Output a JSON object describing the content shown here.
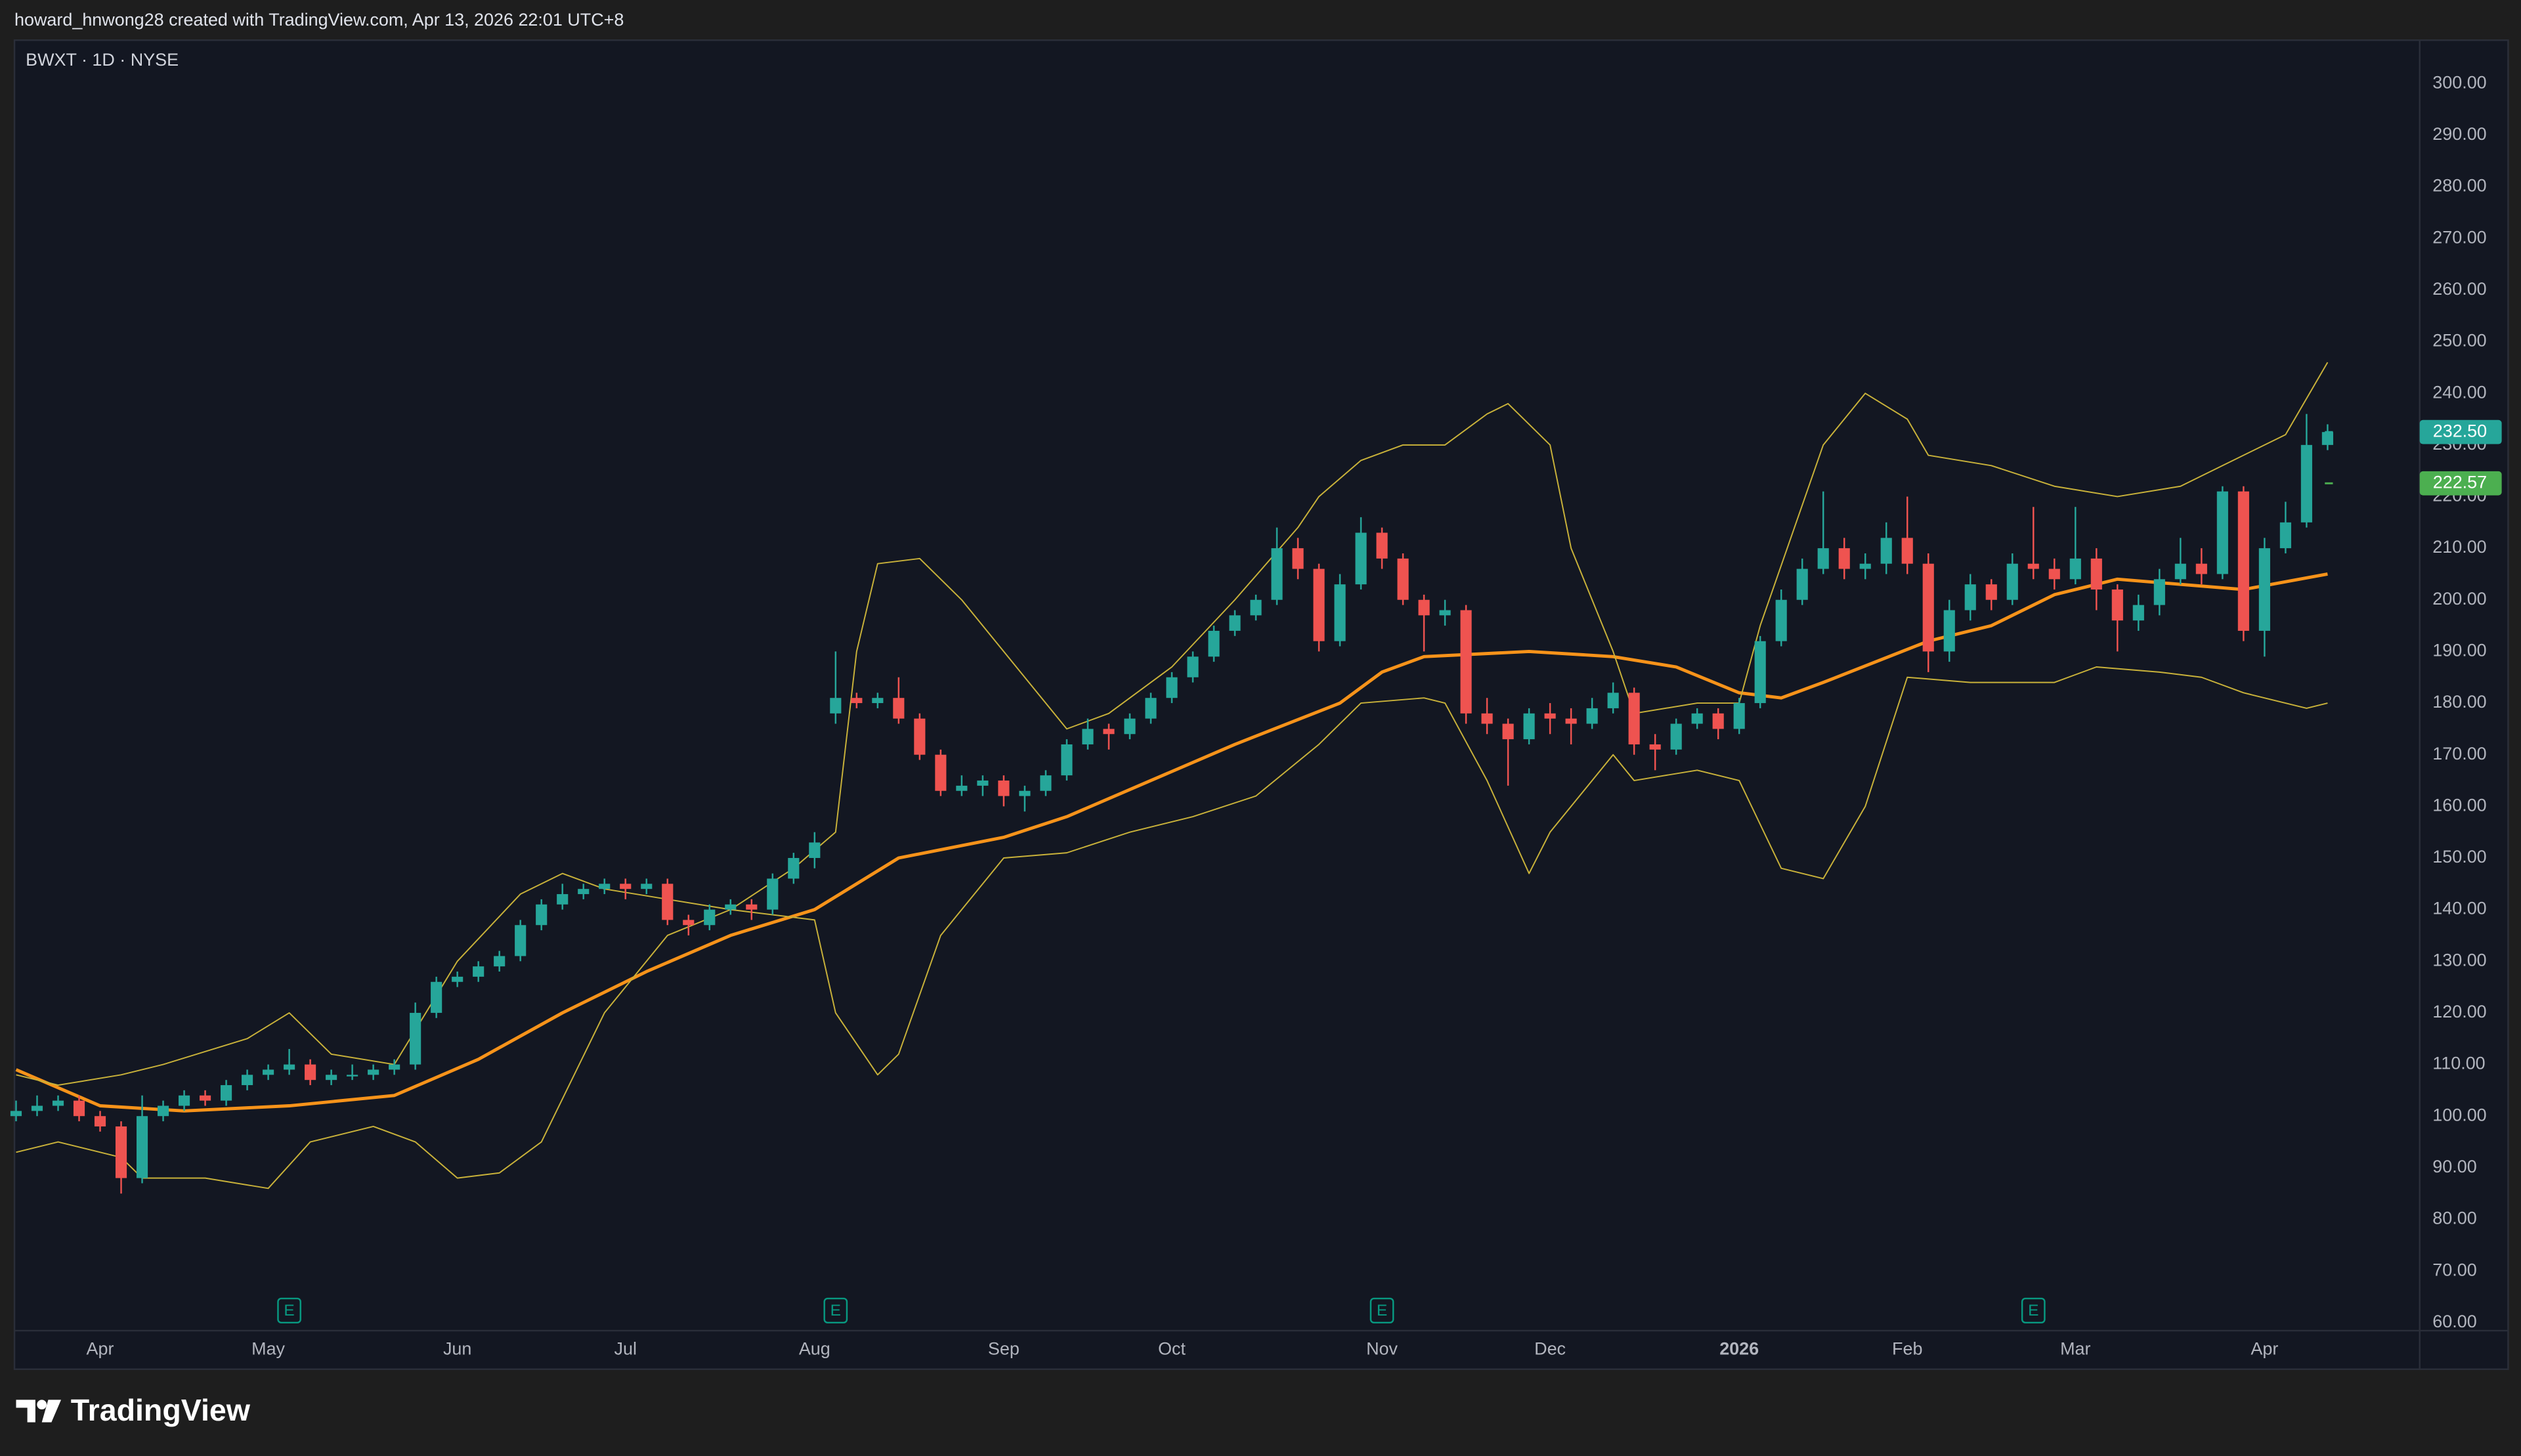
{
  "header": "howard_hnwong28 created with TradingView.com, Apr 13, 2026 22:01 UTC+8",
  "footer": "TradingView",
  "chart_data": {
    "type": "candlestick",
    "title": "BWXT · 1D · NYSE",
    "up_color": "#26a69a",
    "down_color": "#ef5350",
    "grid": false,
    "ylim": [
      60,
      300
    ],
    "yticks": [
      {
        "value": 60,
        "label": "60.00"
      },
      {
        "value": 70,
        "label": "70.00"
      },
      {
        "value": 80,
        "label": "80.00"
      },
      {
        "value": 90,
        "label": "90.00"
      },
      {
        "value": 100,
        "label": "100.00"
      },
      {
        "value": 110,
        "label": "110.00"
      },
      {
        "value": 120,
        "label": "120.00"
      },
      {
        "value": 130,
        "label": "130.00"
      },
      {
        "value": 140,
        "label": "140.00"
      },
      {
        "value": 150,
        "label": "150.00"
      },
      {
        "value": 160,
        "label": "160.00"
      },
      {
        "value": 170,
        "label": "170.00"
      },
      {
        "value": 180,
        "label": "180.00"
      },
      {
        "value": 190,
        "label": "190.00"
      },
      {
        "value": 200,
        "label": "200.00"
      },
      {
        "value": 210,
        "label": "210.00"
      },
      {
        "value": 220,
        "label": "220.00"
      },
      {
        "value": 230,
        "label": "230.00"
      },
      {
        "value": 240,
        "label": "240.00"
      },
      {
        "value": 250,
        "label": "250.00"
      },
      {
        "value": 260,
        "label": "260.00"
      },
      {
        "value": 270,
        "label": "270.00"
      },
      {
        "value": 280,
        "label": "280.00"
      },
      {
        "value": 290,
        "label": "290.00"
      },
      {
        "value": 300,
        "label": "300.00"
      }
    ],
    "categories": [
      null,
      null,
      null,
      null,
      "Apr",
      null,
      null,
      null,
      null,
      null,
      null,
      null,
      "May",
      null,
      null,
      null,
      null,
      null,
      null,
      null,
      null,
      "Jun",
      null,
      null,
      null,
      null,
      null,
      null,
      null,
      "Jul",
      null,
      null,
      null,
      null,
      null,
      null,
      null,
      null,
      "Aug",
      null,
      null,
      null,
      null,
      null,
      null,
      null,
      null,
      "Sep",
      null,
      null,
      null,
      null,
      null,
      null,
      null,
      "Oct",
      null,
      null,
      null,
      null,
      null,
      null,
      null,
      null,
      null,
      "Nov",
      null,
      null,
      null,
      null,
      null,
      null,
      null,
      "Dec",
      null,
      null,
      null,
      null,
      null,
      null,
      null,
      null,
      "2026",
      null,
      null,
      null,
      null,
      null,
      null,
      null,
      "Feb",
      null,
      null,
      null,
      null,
      null,
      null,
      null,
      "Mar",
      null,
      null,
      null,
      null,
      null,
      null,
      null,
      null,
      "Apr",
      null,
      null,
      null
    ],
    "ohlc": [
      [
        100,
        103,
        99,
        101
      ],
      [
        101,
        104,
        100,
        102
      ],
      [
        102,
        104,
        101,
        103
      ],
      [
        103,
        104,
        99,
        100
      ],
      [
        100,
        101,
        97,
        98
      ],
      [
        98,
        99,
        85,
        88
      ],
      [
        88,
        104,
        87,
        100
      ],
      [
        100,
        103,
        99,
        102
      ],
      [
        102,
        105,
        101,
        104
      ],
      [
        104,
        105,
        102,
        103
      ],
      [
        103,
        107,
        102,
        106
      ],
      [
        106,
        109,
        105,
        108
      ],
      [
        108,
        110,
        107,
        109
      ],
      [
        109,
        113,
        108,
        110
      ],
      [
        110,
        111,
        106,
        107
      ],
      [
        107,
        109,
        106,
        108
      ],
      [
        108,
        110,
        107,
        108
      ],
      [
        108,
        110,
        107,
        109
      ],
      [
        109,
        111,
        108,
        110
      ],
      [
        110,
        122,
        109,
        120
      ],
      [
        120,
        127,
        119,
        126
      ],
      [
        126,
        128,
        125,
        127
      ],
      [
        127,
        130,
        126,
        129
      ],
      [
        129,
        132,
        128,
        131
      ],
      [
        131,
        138,
        130,
        137
      ],
      [
        137,
        142,
        136,
        141
      ],
      [
        141,
        145,
        140,
        143
      ],
      [
        143,
        145,
        142,
        144
      ],
      [
        144,
        146,
        143,
        145
      ],
      [
        145,
        146,
        142,
        144
      ],
      [
        144,
        146,
        143,
        145
      ],
      [
        145,
        146,
        137,
        138
      ],
      [
        138,
        139,
        135,
        137
      ],
      [
        137,
        141,
        136,
        140
      ],
      [
        140,
        142,
        139,
        141
      ],
      [
        141,
        142,
        138,
        140
      ],
      [
        140,
        147,
        139,
        146
      ],
      [
        146,
        151,
        145,
        150
      ],
      [
        150,
        155,
        148,
        153
      ],
      [
        178,
        190,
        176,
        181
      ],
      [
        181,
        182,
        179,
        180
      ],
      [
        180,
        182,
        179,
        181
      ],
      [
        181,
        185,
        176,
        177
      ],
      [
        177,
        178,
        169,
        170
      ],
      [
        170,
        171,
        162,
        163
      ],
      [
        163,
        166,
        162,
        164
      ],
      [
        164,
        166,
        162,
        165
      ],
      [
        165,
        166,
        160,
        162
      ],
      [
        162,
        164,
        159,
        163
      ],
      [
        163,
        167,
        162,
        166
      ],
      [
        166,
        173,
        165,
        172
      ],
      [
        172,
        177,
        171,
        175
      ],
      [
        175,
        176,
        171,
        174
      ],
      [
        174,
        178,
        173,
        177
      ],
      [
        177,
        182,
        176,
        181
      ],
      [
        181,
        186,
        180,
        185
      ],
      [
        185,
        190,
        184,
        189
      ],
      [
        189,
        195,
        188,
        194
      ],
      [
        194,
        198,
        193,
        197
      ],
      [
        197,
        201,
        196,
        200
      ],
      [
        200,
        214,
        199,
        210
      ],
      [
        210,
        212,
        204,
        206
      ],
      [
        206,
        207,
        190,
        192
      ],
      [
        192,
        205,
        191,
        203
      ],
      [
        203,
        216,
        202,
        213
      ],
      [
        213,
        214,
        206,
        208
      ],
      [
        208,
        209,
        199,
        200
      ],
      [
        200,
        201,
        190,
        197
      ],
      [
        197,
        200,
        195,
        198
      ],
      [
        198,
        199,
        176,
        178
      ],
      [
        178,
        181,
        174,
        176
      ],
      [
        176,
        177,
        164,
        173
      ],
      [
        173,
        179,
        172,
        178
      ],
      [
        178,
        180,
        174,
        177
      ],
      [
        177,
        179,
        172,
        176
      ],
      [
        176,
        181,
        175,
        179
      ],
      [
        179,
        184,
        178,
        182
      ],
      [
        182,
        183,
        170,
        172
      ],
      [
        172,
        174,
        167,
        171
      ],
      [
        171,
        177,
        170,
        176
      ],
      [
        176,
        179,
        175,
        178
      ],
      [
        178,
        179,
        173,
        175
      ],
      [
        175,
        181,
        174,
        180
      ],
      [
        180,
        193,
        179,
        192
      ],
      [
        192,
        202,
        191,
        200
      ],
      [
        200,
        208,
        199,
        206
      ],
      [
        206,
        221,
        205,
        210
      ],
      [
        210,
        212,
        204,
        206
      ],
      [
        206,
        209,
        204,
        207
      ],
      [
        207,
        215,
        205,
        212
      ],
      [
        212,
        220,
        205,
        207
      ],
      [
        207,
        209,
        186,
        190
      ],
      [
        190,
        200,
        188,
        198
      ],
      [
        198,
        205,
        196,
        203
      ],
      [
        203,
        204,
        198,
        200
      ],
      [
        200,
        209,
        199,
        207
      ],
      [
        207,
        218,
        204,
        206
      ],
      [
        206,
        208,
        202,
        204
      ],
      [
        204,
        218,
        203,
        208
      ],
      [
        208,
        210,
        198,
        202
      ],
      [
        202,
        203,
        190,
        196
      ],
      [
        196,
        201,
        194,
        199
      ],
      [
        199,
        206,
        197,
        204
      ],
      [
        204,
        212,
        203,
        207
      ],
      [
        207,
        210,
        203,
        205
      ],
      [
        205,
        222,
        204,
        221
      ],
      [
        221,
        222,
        192,
        194
      ],
      [
        194,
        212,
        189,
        210
      ],
      [
        210,
        219,
        209,
        215
      ],
      [
        215,
        236,
        214,
        230
      ],
      [
        230,
        234,
        229,
        232.5
      ]
    ],
    "lines": [
      {
        "color": "#f7931a",
        "width": 2,
        "x": [
          0,
          4,
          8,
          13,
          18,
          22,
          26,
          30,
          34,
          38,
          42,
          47,
          50,
          54,
          58,
          63,
          65,
          67,
          72,
          76,
          79,
          82,
          84,
          86,
          91,
          94,
          97,
          100,
          103,
          106,
          110
        ],
        "values": [
          109,
          102,
          101,
          102,
          104,
          111,
          120,
          128,
          135,
          140,
          150,
          154,
          158,
          165,
          172,
          180,
          186,
          189,
          190,
          189,
          187,
          182,
          181,
          184,
          192,
          195,
          201,
          204,
          203,
          202,
          205
        ]
      },
      {
        "color": "#c9b23a",
        "width": 0.8,
        "x": [
          0,
          2,
          5,
          7,
          11,
          13,
          15,
          18,
          21,
          24,
          26,
          28,
          31,
          34,
          37,
          39,
          40,
          41,
          43,
          45,
          48,
          50,
          52,
          55,
          58,
          61,
          62,
          64,
          66,
          68,
          70,
          71,
          73,
          74,
          76,
          77,
          80,
          82,
          83,
          86,
          88,
          90,
          91,
          94,
          97,
          100,
          103,
          105,
          108,
          110
        ],
        "values": [
          108,
          106,
          108,
          110,
          115,
          120,
          112,
          110,
          130,
          143,
          147,
          144,
          142,
          140,
          148,
          155,
          190,
          207,
          208,
          200,
          185,
          175,
          178,
          187,
          200,
          214,
          220,
          227,
          230,
          230,
          236,
          238,
          230,
          210,
          190,
          178,
          180,
          180,
          195,
          230,
          240,
          235,
          228,
          226,
          222,
          220,
          222,
          226,
          232,
          246
        ]
      },
      {
        "color": "#c9b23a",
        "width": 0.8,
        "x": [
          0,
          2,
          5,
          6,
          9,
          12,
          14,
          17,
          19,
          21,
          23,
          25,
          28,
          31,
          34,
          38,
          39,
          41,
          42,
          44,
          47,
          50,
          53,
          56,
          59,
          62,
          64,
          67,
          68,
          70,
          72,
          73,
          76,
          77,
          80,
          82,
          84,
          86,
          88,
          90,
          93,
          97,
          99,
          102,
          104,
          106,
          109,
          110
        ],
        "values": [
          93,
          95,
          92,
          88,
          88,
          86,
          95,
          98,
          95,
          88,
          89,
          95,
          120,
          135,
          140,
          138,
          120,
          108,
          112,
          135,
          150,
          151,
          155,
          158,
          162,
          172,
          180,
          181,
          180,
          165,
          147,
          155,
          170,
          165,
          167,
          165,
          148,
          146,
          160,
          185,
          184,
          184,
          187,
          186,
          185,
          182,
          179,
          180
        ]
      }
    ],
    "events": {
      "label": "E",
      "color": "#089981",
      "x": [
        13,
        39,
        65,
        96
      ]
    },
    "price_labels": [
      {
        "value": 232.5,
        "label": "232.50",
        "color": "#26a69a"
      },
      {
        "value": 222.57,
        "label": "222.57",
        "color": "#4caf50"
      }
    ]
  }
}
